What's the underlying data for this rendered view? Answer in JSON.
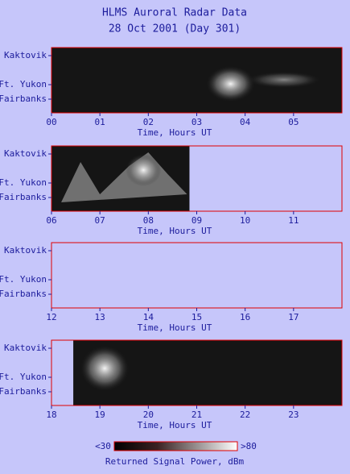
{
  "title": [
    "HLMS Auroral Radar Data",
    "28 Oct 2001 (Day 301)"
  ],
  "chart_data": [
    {
      "type": "heatmap",
      "xlabel": "Time, Hours UT",
      "xlim": [
        0,
        6
      ],
      "xticks": [
        {
          "value": 0,
          "label": "00"
        },
        {
          "value": 1,
          "label": "01"
        },
        {
          "value": 2,
          "label": "02"
        },
        {
          "value": 3,
          "label": "03"
        },
        {
          "value": 4,
          "label": "04"
        },
        {
          "value": 5,
          "label": "05"
        }
      ],
      "ylabels": [
        "Kaktovik",
        "Ft. Yukon",
        "Fairbanks"
      ],
      "data_span": [
        0,
        6
      ]
    },
    {
      "type": "heatmap",
      "xlabel": "Time, Hours UT",
      "xlim": [
        6,
        12
      ],
      "xticks": [
        {
          "value": 6,
          "label": "06"
        },
        {
          "value": 7,
          "label": "07"
        },
        {
          "value": 8,
          "label": "08"
        },
        {
          "value": 9,
          "label": "09"
        },
        10,
        11
      ],
      "ylabels": [
        "Kaktovik",
        "Ft. Yukon",
        "Fairbanks"
      ],
      "data_span": [
        6,
        8.85
      ]
    },
    {
      "type": "heatmap",
      "xlabel": "Time, Hours UT",
      "xlim": [
        12,
        18
      ],
      "xticks": [
        12,
        13,
        14,
        15,
        16,
        17
      ],
      "ylabels": [
        "Kaktovik",
        "Ft. Yukon",
        "Fairbanks"
      ]
    },
    {
      "type": "heatmap",
      "xlabel": "Time, Hours UT",
      "xlim": [
        18,
        24
      ],
      "xticks": [
        18,
        19,
        20,
        21,
        22,
        23
      ],
      "ylabels": [
        "Kaktovik",
        "Ft. Yukon",
        "Fairbanks"
      ],
      "data_span": [
        18.45,
        24
      ]
    }
  ],
  "colorbar": {
    "range": [
      {
        "value": 30,
        "label": "<30"
      },
      {
        "value": 80,
        "label": ">80"
      }
    ],
    "label": "Returned Signal Power, dBm"
  }
}
